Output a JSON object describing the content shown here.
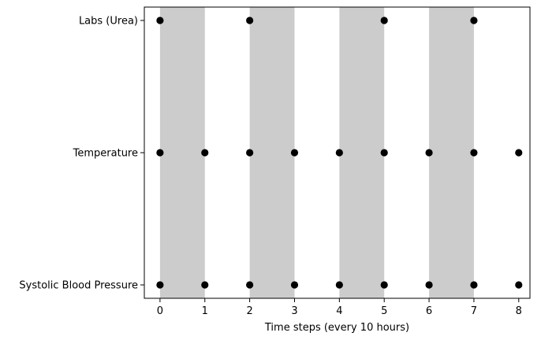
{
  "chart_data": {
    "type": "scatter",
    "title": "",
    "xlabel": "Time steps (every 10 hours)",
    "ylabel": "",
    "xlim": [
      -0.35,
      8.25
    ],
    "x_ticks": [
      0,
      1,
      2,
      3,
      4,
      5,
      6,
      7,
      8
    ],
    "categories": [
      "Systolic Blood Pressure",
      "Temperature",
      "Labs (Urea)"
    ],
    "shaded_intervals": [
      [
        0,
        1
      ],
      [
        2,
        3
      ],
      [
        4,
        5
      ],
      [
        6,
        7
      ]
    ],
    "grid": false,
    "legend": "none",
    "series": [
      {
        "category": "Labs (Urea)",
        "x": [
          0,
          2,
          5,
          7
        ]
      },
      {
        "category": "Temperature",
        "x": [
          0,
          1,
          2,
          3,
          4,
          5,
          6,
          7,
          8
        ]
      },
      {
        "category": "Systolic Blood Pressure",
        "x": [
          0,
          1,
          2,
          3,
          4,
          5,
          6,
          7,
          8
        ]
      }
    ],
    "colors": {
      "marker": "#000000",
      "shade": "#cccccc"
    }
  }
}
